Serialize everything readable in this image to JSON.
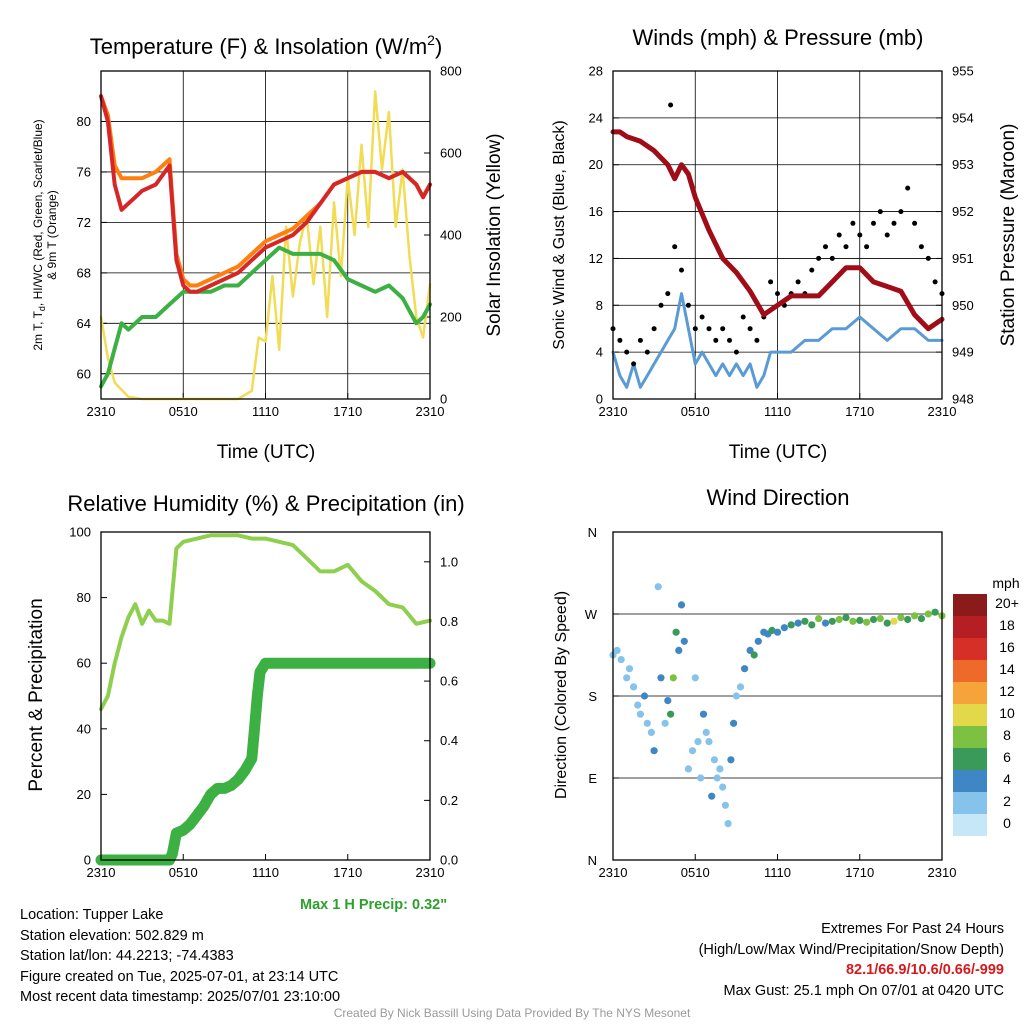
{
  "colors": {
    "air_temp": "#d62728",
    "dewpoint": "#3cb043",
    "heat_index": "#ff7f0e",
    "temp_9m": "#f28e2b",
    "solar": "#f2dc55",
    "wind_speed": "#5b9bd5",
    "gust": "#000000",
    "pressure": "#a00c18",
    "rh": "#8fcf4f",
    "precip": "#3cb043",
    "extremes": "#d7191c",
    "credit": "#9a9a9a"
  },
  "panels": {
    "temperature": {
      "title_main": "Temperature (F) & Insolation (W/m",
      "title_sup": "2",
      "title_end": ")",
      "ylabel_line1": "2m T, T",
      "ylabel_sub": "d",
      "ylabel_line1_end": ", HI/WC (Red, Green, Scarlet/Blue)",
      "ylabel_line2": "& 9m T (Orange)",
      "y2label": "Solar Insolation (Yellow)",
      "xlabel": "Time (UTC)"
    },
    "winds": {
      "title": "Winds (mph) & Pressure (mb)",
      "ylabel": "Sonic Wind & Gust (Blue, Black)",
      "y2label": "Station Pressure (Maroon)",
      "xlabel": "Time (UTC)"
    },
    "humidity": {
      "title": "Relative Humidity (%) & Precipitation (in)",
      "ylabel": "Percent & Precipitation",
      "max_precip": "Max 1 H Precip: 0.32\""
    },
    "direction": {
      "title": "Wind Direction",
      "ylabel": "Direction (Colored By Speed)",
      "legend_title": "mph",
      "legend_labels": [
        "20+",
        "18",
        "16",
        "14",
        "12",
        "10",
        "8",
        "6",
        "4",
        "2",
        "0"
      ]
    }
  },
  "chart_data": [
    {
      "type": "line",
      "x_ticks": [
        "2310",
        "0510",
        "1110",
        "1710",
        "2310"
      ],
      "x_hours": [
        0,
        24
      ],
      "y_ticks": [
        60,
        64,
        68,
        72,
        76,
        80
      ],
      "ylim": [
        58,
        84
      ],
      "y2_ticks": [
        0,
        200,
        400,
        600,
        800
      ],
      "y2lim": [
        0,
        800
      ],
      "grid": true,
      "series": [
        {
          "key": "air_temp",
          "axis": "y",
          "x": [
            0,
            0.5,
            1,
            1.5,
            2,
            2.5,
            3,
            4,
            5,
            5.5,
            6,
            6.5,
            7,
            8,
            9,
            10,
            11,
            12,
            13,
            14,
            15,
            16,
            17,
            18,
            19,
            20,
            21,
            22,
            23,
            23.5,
            24
          ],
          "values": [
            82,
            80,
            75,
            73,
            73.5,
            74,
            74.5,
            75,
            76.5,
            69,
            67,
            66.5,
            66.5,
            67,
            67.5,
            68,
            69,
            70,
            70.5,
            71,
            72,
            73.5,
            75,
            75.5,
            76,
            76,
            75.5,
            76,
            75,
            74,
            75
          ]
        },
        {
          "key": "heat_index",
          "axis": "y",
          "x": [
            0,
            0.5,
            1,
            1.5,
            2,
            2.5,
            3,
            4,
            5,
            5.5,
            6,
            6.5,
            7,
            8,
            9,
            10,
            11,
            12,
            13,
            14,
            15,
            16,
            17,
            18,
            19,
            20,
            21,
            22,
            23,
            23.5,
            24
          ],
          "values": [
            82,
            80.5,
            76.5,
            75.5,
            75.5,
            75.5,
            75.5,
            76,
            77,
            69.5,
            67.5,
            67,
            67,
            67.5,
            68,
            68.5,
            69.5,
            70.5,
            71,
            71.5,
            72.5,
            73.5,
            75,
            75.5,
            76,
            76,
            75.5,
            76,
            75,
            74,
            75
          ]
        },
        {
          "key": "dewpoint",
          "axis": "y",
          "x": [
            0,
            0.5,
            1,
            1.5,
            2,
            2.5,
            3,
            4,
            5,
            5.5,
            6,
            6.5,
            7,
            8,
            9,
            10,
            11,
            12,
            13,
            14,
            15,
            16,
            17,
            18,
            19,
            20,
            21,
            22,
            23,
            23.5,
            24
          ],
          "values": [
            59,
            60,
            62,
            64,
            63.5,
            64,
            64.5,
            64.5,
            65.5,
            66,
            66.5,
            66.5,
            66.5,
            66.5,
            67,
            67,
            68,
            69,
            70,
            69.5,
            69.5,
            69.5,
            69,
            67.5,
            67,
            66.5,
            67,
            66,
            64,
            64.5,
            65.5
          ]
        },
        {
          "key": "solar",
          "axis": "y2",
          "x": [
            0,
            0.5,
            1,
            2,
            3,
            4,
            5,
            6,
            7,
            8,
            9,
            10,
            11,
            11.5,
            12,
            12.5,
            13,
            13.5,
            14,
            14.5,
            15,
            15.5,
            16,
            16.5,
            17,
            17.5,
            18,
            18.5,
            19,
            19.5,
            20,
            20.5,
            21,
            21.5,
            22,
            22.5,
            23,
            23.5,
            24
          ],
          "values": [
            200,
            100,
            40,
            5,
            0,
            0,
            0,
            0,
            0,
            0,
            0,
            0,
            20,
            150,
            140,
            300,
            120,
            420,
            250,
            380,
            450,
            280,
            420,
            200,
            480,
            300,
            540,
            400,
            620,
            420,
            750,
            560,
            700,
            420,
            560,
            350,
            200,
            150,
            280
          ]
        }
      ]
    },
    {
      "type": "line",
      "x_ticks": [
        "2310",
        "0510",
        "1110",
        "1710",
        "2310"
      ],
      "y_ticks": [
        0,
        4,
        8,
        12,
        16,
        20,
        24,
        28
      ],
      "ylim": [
        0,
        28
      ],
      "y2_ticks": [
        948,
        949,
        950,
        951,
        952,
        953,
        954,
        955
      ],
      "y2lim": [
        948,
        955
      ],
      "grid": true,
      "max_gust_mph": 25.1,
      "series": [
        {
          "key": "pressure",
          "axis": "y2",
          "x": [
            0,
            0.5,
            1,
            2,
            3,
            4,
            4.5,
            5,
            5.5,
            6,
            7,
            8,
            9,
            10,
            11,
            12,
            13,
            14,
            15,
            16,
            17,
            18,
            19,
            20,
            21,
            22,
            23,
            23.5,
            24
          ],
          "values": [
            953.7,
            953.7,
            953.6,
            953.5,
            953.3,
            953,
            952.7,
            953,
            952.8,
            952.3,
            951.6,
            951,
            950.7,
            950.3,
            949.8,
            950,
            950.2,
            950.2,
            950.2,
            950.5,
            950.8,
            950.8,
            950.5,
            950.4,
            950.3,
            949.8,
            949.5,
            949.6,
            949.7
          ]
        },
        {
          "key": "wind_speed",
          "axis": "y",
          "x": [
            0,
            0.5,
            1,
            1.5,
            2,
            2.5,
            3,
            3.5,
            4,
            4.5,
            5,
            5.5,
            6,
            6.5,
            7,
            7.5,
            8,
            8.5,
            9,
            9.5,
            10,
            10.5,
            11,
            11.5,
            12,
            13,
            14,
            15,
            16,
            17,
            18,
            19,
            20,
            21,
            22,
            23,
            24
          ],
          "values": [
            4,
            2,
            1,
            3,
            1,
            2,
            3,
            4,
            5,
            6,
            9,
            6,
            3,
            4,
            3,
            2,
            3,
            2,
            3,
            2,
            3,
            1,
            2,
            4,
            4,
            4,
            5,
            5,
            6,
            6,
            7,
            6,
            5,
            6,
            6,
            5,
            5
          ]
        },
        {
          "key": "gust",
          "axis": "y",
          "type": "scatter",
          "x": [
            0,
            0.5,
            1,
            1.5,
            2,
            2.5,
            3,
            3.5,
            4,
            4.2,
            4.5,
            5,
            5.5,
            6,
            6.5,
            7,
            7.5,
            8,
            8.5,
            9,
            9.5,
            10,
            10.5,
            11,
            11.5,
            12,
            12.5,
            13,
            13.5,
            14,
            14.5,
            15,
            15.5,
            16,
            16.5,
            17,
            17.5,
            18,
            18.5,
            19,
            19.5,
            20,
            20.5,
            21,
            21.5,
            22,
            22.5,
            23,
            23.5,
            24
          ],
          "values": [
            6,
            5,
            4,
            3,
            5,
            4,
            6,
            8,
            9,
            25.1,
            13,
            11,
            8,
            6,
            7,
            6,
            5,
            6,
            5,
            4,
            7,
            6,
            5,
            7,
            10,
            9,
            8,
            9,
            10,
            9,
            11,
            12,
            13,
            12,
            14,
            13,
            15,
            14,
            13,
            15,
            16,
            14,
            15,
            16,
            18,
            15,
            13,
            12,
            10,
            9
          ]
        }
      ]
    },
    {
      "type": "line",
      "x_ticks": [
        "2310",
        "0510",
        "1110",
        "1710",
        "2310"
      ],
      "y_ticks": [
        0,
        20,
        40,
        60,
        80,
        100
      ],
      "ylim": [
        0,
        100
      ],
      "y2_ticks": [
        0.0,
        0.2,
        0.4,
        0.6,
        0.8,
        1.0
      ],
      "y2lim": [
        0,
        1.1
      ],
      "grid": false,
      "max_1h_precip_in": 0.32,
      "series": [
        {
          "key": "rh",
          "axis": "y",
          "x": [
            0,
            0.5,
            1,
            1.5,
            2,
            2.5,
            3,
            3.5,
            4,
            4.5,
            5,
            5.5,
            6,
            7,
            8,
            9,
            10,
            11,
            12,
            13,
            14,
            15,
            16,
            17,
            18,
            19,
            20,
            21,
            22,
            23,
            24
          ],
          "values": [
            46,
            50,
            60,
            68,
            74,
            78,
            72,
            76,
            73,
            73,
            72,
            95,
            97,
            98,
            99,
            99,
            99,
            98,
            98,
            97,
            96,
            92,
            88,
            88,
            90,
            85,
            82,
            78,
            77,
            72,
            73
          ]
        },
        {
          "key": "precip",
          "axis": "y2",
          "x": [
            0,
            1,
            2,
            3,
            4,
            5,
            5.2,
            5.5,
            6,
            6.5,
            7,
            7.5,
            8,
            8.5,
            9,
            9.5,
            10,
            10.5,
            11,
            11.2,
            11.4,
            11.6,
            12,
            13,
            14,
            15,
            16,
            17,
            18,
            19,
            20,
            21,
            22,
            23,
            24
          ],
          "values": [
            0,
            0,
            0,
            0,
            0,
            0,
            0.02,
            0.09,
            0.1,
            0.12,
            0.15,
            0.18,
            0.22,
            0.24,
            0.24,
            0.25,
            0.27,
            0.3,
            0.34,
            0.44,
            0.55,
            0.63,
            0.66,
            0.66,
            0.66,
            0.66,
            0.66,
            0.66,
            0.66,
            0.66,
            0.66,
            0.66,
            0.66,
            0.66,
            0.66
          ]
        }
      ]
    },
    {
      "type": "scatter",
      "x_ticks": [
        "2310",
        "0510",
        "1110",
        "1710",
        "2310"
      ],
      "y_ticks": [
        "N",
        "E",
        "S",
        "W",
        "N"
      ],
      "ylim": [
        0,
        360
      ],
      "colorbar_mph": [
        0,
        2,
        4,
        6,
        8,
        10,
        12,
        14,
        16,
        18,
        20
      ],
      "series": [
        {
          "key": "direction",
          "x": [
            0,
            0.3,
            0.6,
            1,
            1.2,
            1.5,
            1.8,
            2,
            2.3,
            2.5,
            2.8,
            3,
            3.3,
            3.5,
            3.8,
            4,
            4.2,
            4.4,
            4.6,
            4.8,
            5,
            5.2,
            5.5,
            5.8,
            6,
            6.2,
            6.4,
            6.6,
            6.8,
            7,
            7.2,
            7.4,
            7.6,
            7.8,
            8,
            8.2,
            8.4,
            8.6,
            8.8,
            9,
            9.3,
            9.6,
            10,
            10.3,
            10.6,
            11,
            11.3,
            11.6,
            12,
            12.5,
            13,
            13.5,
            14,
            14.5,
            15,
            15.5,
            16,
            16.5,
            17,
            17.5,
            18,
            18.5,
            19,
            19.5,
            20,
            20.5,
            21,
            21.5,
            22,
            22.5,
            23,
            23.5,
            24
          ],
          "values": [
            225,
            230,
            220,
            200,
            210,
            190,
            170,
            160,
            180,
            150,
            140,
            120,
            300,
            200,
            150,
            175,
            160,
            200,
            250,
            230,
            280,
            240,
            100,
            120,
            200,
            130,
            90,
            160,
            140,
            130,
            70,
            110,
            90,
            100,
            80,
            60,
            40,
            110,
            150,
            180,
            190,
            210,
            230,
            225,
            240,
            250,
            248,
            252,
            250,
            255,
            258,
            260,
            262,
            258,
            265,
            260,
            262,
            264,
            266,
            262,
            263,
            261,
            264,
            265,
            260,
            262,
            266,
            264,
            268,
            265,
            270,
            272,
            268
          ],
          "speeds": [
            2,
            2,
            1,
            1,
            2,
            1,
            1,
            1,
            3,
            2,
            2,
            3,
            1,
            3,
            1,
            3,
            6,
            8,
            5,
            4,
            4,
            3,
            2,
            2,
            1,
            2,
            1,
            3,
            2,
            1,
            3,
            2,
            1,
            1,
            2,
            2,
            1,
            3,
            4,
            2,
            2,
            3,
            4,
            5,
            4,
            3,
            4,
            5,
            4,
            3,
            5,
            4,
            6,
            5,
            7,
            4,
            6,
            8,
            5,
            7,
            6,
            8,
            5,
            7,
            6,
            9,
            7,
            6,
            8,
            5,
            7,
            6,
            8
          ]
        }
      ]
    }
  ],
  "footer": {
    "location": "Location: Tupper Lake",
    "elevation": "Station elevation: 502.829 m",
    "latlon": "Station lat/lon: 44.2213; -74.4383",
    "created": "Figure created on Tue, 2025-07-01, at 23:14 UTC",
    "recent": "Most recent data timestamp: 2025/07/01 23:10:00",
    "extremes_title": "Extremes For Past 24 Hours",
    "extremes_fields": "(High/Low/Max Wind/Precipitation/Snow Depth)",
    "extremes_values": "82.1/66.9/10.6/0.66/-999",
    "max_gust": "Max Gust: 25.1 mph On 07/01 at 0420 UTC",
    "credit": "Created By Nick Bassill Using Data Provided By The NYS Mesonet"
  }
}
